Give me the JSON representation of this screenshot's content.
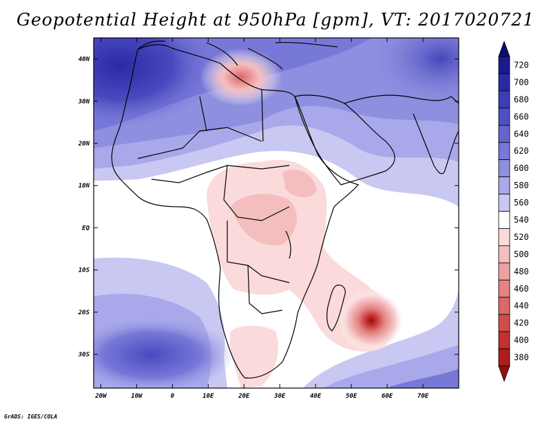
{
  "title": "Geopotential Height at 950hPa [gpm], VT: 2017020721",
  "credit": "GrADS: IGES/COLA",
  "map": {
    "region": "Africa, Middle East and western Indian Ocean",
    "lon_range": [
      -22,
      80
    ],
    "lat_range": [
      -38,
      45
    ],
    "lat_labels": [
      "40N",
      "30N",
      "20N",
      "10N",
      "EQ",
      "10S",
      "20S",
      "30S"
    ],
    "lat_values": [
      40,
      30,
      20,
      10,
      0,
      -10,
      -20,
      -30
    ],
    "lon_labels": [
      "20W",
      "10W",
      "0",
      "10E",
      "20E",
      "30E",
      "40E",
      "50E",
      "60E",
      "70E"
    ],
    "lon_values": [
      -20,
      -10,
      0,
      10,
      20,
      30,
      40,
      50,
      60,
      70
    ]
  },
  "colorbar": {
    "labels": [
      "720",
      "700",
      "680",
      "660",
      "640",
      "620",
      "600",
      "580",
      "560",
      "540",
      "520",
      "500",
      "480",
      "460",
      "440",
      "420",
      "400",
      "380"
    ],
    "colors": [
      "#1a1a8c",
      "#2a2aa6",
      "#3d3db8",
      "#5050c4",
      "#6464cf",
      "#7878d8",
      "#8f8fe0",
      "#a8a8ea",
      "#c8c8f2",
      "#ffffff",
      "#fadada",
      "#f4bebe",
      "#eca2a2",
      "#e48484",
      "#dc6868",
      "#d24c4c",
      "#c43030",
      "#b01c1c"
    ]
  }
}
